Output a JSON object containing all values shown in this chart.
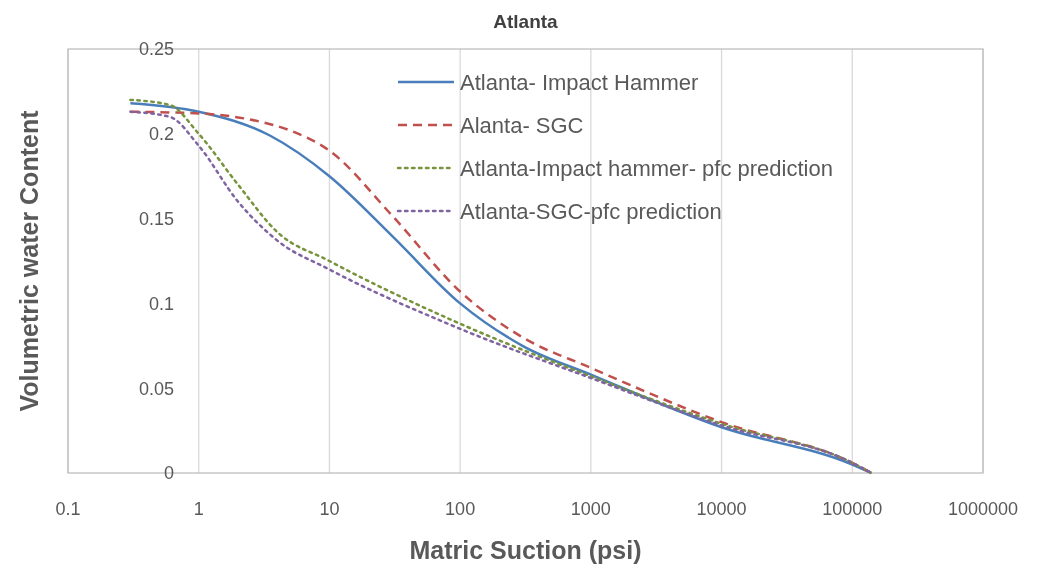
{
  "chart_data": {
    "type": "line",
    "title": "Atlanta",
    "xlabel": "Matric Suction (psi)",
    "ylabel": "Volumetric water Content",
    "log": "x",
    "grid": "x",
    "legend": "top right",
    "marker": "none",
    "xlim": [
      0.1,
      1000000
    ],
    "xticks": [
      {
        "value": 0.1,
        "label": "0.1"
      },
      1,
      10,
      100,
      1000,
      10000,
      100000,
      1000000
    ],
    "ylim": [
      0,
      0.25
    ],
    "yticks": [
      0,
      0.05,
      0.1,
      0.15,
      0.2,
      0.25
    ],
    "series": [
      {
        "name": "Atlanta- Impact Hammer",
        "color": "#4a7ebb",
        "line_style": "solid",
        "x": [
          0.3,
          1,
          3.5,
          10,
          30,
          100,
          300,
          1000,
          10000,
          100000,
          140000
        ],
        "values": [
          0.218,
          0.213,
          0.199,
          0.175,
          0.14,
          0.1,
          0.075,
          0.058,
          0.027,
          0.005,
          0
        ]
      },
      {
        "name": "Alanta- SGC",
        "color": "#c0504d",
        "line_style": "dashed",
        "x": [
          0.3,
          1,
          3,
          5,
          10,
          30,
          100,
          300,
          1000,
          10000,
          100000,
          140000
        ],
        "values": [
          0.213,
          0.212,
          0.207,
          0.202,
          0.19,
          0.152,
          0.107,
          0.08,
          0.062,
          0.03,
          0.006,
          0
        ]
      },
      {
        "name": "Atlanta-Impact hammer- pfc prediction",
        "color": "#77933c",
        "line_style": "dotted",
        "x": [
          0.3,
          0.6,
          1,
          2,
          4,
          10,
          100,
          1000,
          10000,
          100000,
          140000
        ],
        "values": [
          0.22,
          0.217,
          0.2,
          0.17,
          0.142,
          0.125,
          0.088,
          0.057,
          0.029,
          0.006,
          0
        ]
      },
      {
        "name": "Atlanta-SGC-pfc prediction",
        "color": "#8064a2",
        "line_style": "dotted",
        "x": [
          0.3,
          0.6,
          1,
          2,
          4,
          10,
          100,
          1000,
          10000,
          100000,
          140000
        ],
        "values": [
          0.213,
          0.21,
          0.193,
          0.16,
          0.137,
          0.12,
          0.085,
          0.056,
          0.028,
          0.006,
          0
        ]
      }
    ]
  }
}
